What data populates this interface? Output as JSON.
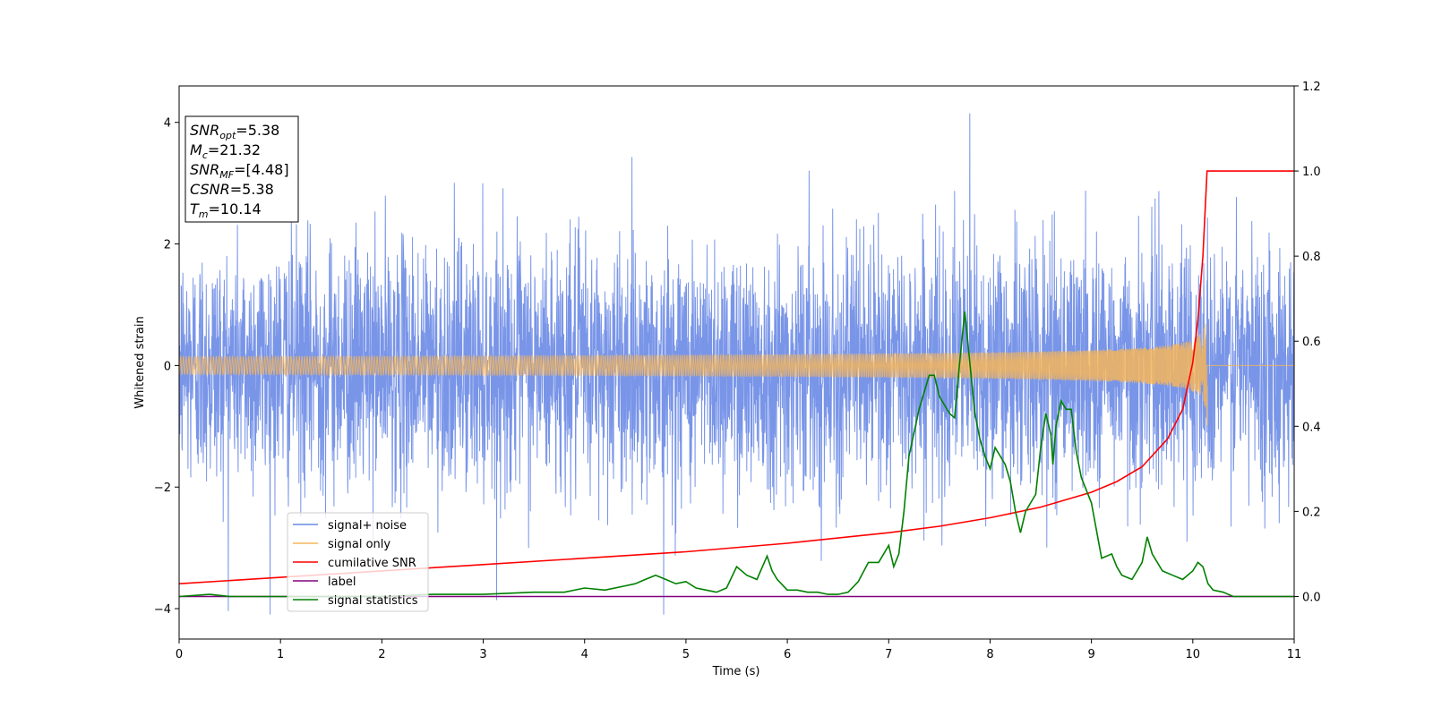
{
  "chart_data": {
    "type": "line",
    "xlabel": "Time (s)",
    "ylabel": "Whitened strain",
    "xlim": [
      0,
      11
    ],
    "ylim_left": [
      -4.5,
      4.6
    ],
    "ylim_right": [
      -0.1,
      1.2
    ],
    "x_ticks": [
      0,
      1,
      2,
      3,
      4,
      5,
      6,
      7,
      8,
      9,
      10,
      11
    ],
    "y_ticks_left": [
      -4,
      -2,
      0,
      2,
      4
    ],
    "y_ticks_right": [
      0.0,
      0.2,
      0.4,
      0.6,
      0.8,
      1.0,
      1.2
    ],
    "grid": false,
    "legend_position": "lower-left",
    "info_box": [
      {
        "base": "SNR",
        "sub": "opt",
        "value": "=5.38"
      },
      {
        "base": "M",
        "sub": "c",
        "value": "=21.32"
      },
      {
        "base": "SNR",
        "sub": "MF",
        "value": "=[4.48]"
      },
      {
        "base": "CSNR",
        "sub": "",
        "value": "=5.38"
      },
      {
        "base": "T",
        "sub": "m",
        "value": "=10.14"
      }
    ],
    "series": [
      {
        "name": "signal+ noise",
        "axis": "left",
        "color": "#6a8ae6",
        "kind": "noise",
        "amplitude_std": 1.0,
        "peak_max": 4.15,
        "peak_min": -4.1
      },
      {
        "name": "signal only",
        "axis": "left",
        "color": "#f5b55a",
        "kind": "chirp",
        "merger_time": 10.14,
        "peak_amplitude": 1.05
      },
      {
        "name": "cumilative SNR",
        "axis": "right",
        "color": "#ff0000",
        "x": [
          0,
          1,
          2,
          3,
          4,
          5,
          6,
          7,
          7.5,
          8,
          8.5,
          9,
          9.25,
          9.5,
          9.75,
          9.9,
          10.0,
          10.05,
          10.1,
          10.14,
          11
        ],
        "y": [
          0.03,
          0.045,
          0.06,
          0.075,
          0.09,
          0.105,
          0.125,
          0.15,
          0.165,
          0.185,
          0.21,
          0.245,
          0.27,
          0.305,
          0.37,
          0.44,
          0.55,
          0.65,
          0.8,
          1.0,
          1.0
        ]
      },
      {
        "name": "label",
        "axis": "right",
        "color": "#800080",
        "x": [
          0,
          11
        ],
        "y": [
          0.0,
          0.0
        ]
      },
      {
        "name": "signal statistics",
        "axis": "right",
        "color": "#008000",
        "x": [
          0,
          0.3,
          0.5,
          1.0,
          1.5,
          2.0,
          2.5,
          3.0,
          3.5,
          3.8,
          4.0,
          4.2,
          4.4,
          4.5,
          4.6,
          4.7,
          4.8,
          4.9,
          5.0,
          5.1,
          5.2,
          5.3,
          5.4,
          5.5,
          5.6,
          5.7,
          5.8,
          5.85,
          5.9,
          6.0,
          6.1,
          6.2,
          6.3,
          6.4,
          6.5,
          6.6,
          6.7,
          6.8,
          6.9,
          7.0,
          7.05,
          7.1,
          7.15,
          7.2,
          7.3,
          7.4,
          7.45,
          7.5,
          7.6,
          7.65,
          7.7,
          7.75,
          7.8,
          7.85,
          7.9,
          7.95,
          8.0,
          8.05,
          8.1,
          8.15,
          8.2,
          8.25,
          8.3,
          8.35,
          8.4,
          8.45,
          8.5,
          8.55,
          8.6,
          8.62,
          8.65,
          8.7,
          8.75,
          8.8,
          8.85,
          8.9,
          9.0,
          9.1,
          9.2,
          9.25,
          9.3,
          9.4,
          9.5,
          9.55,
          9.6,
          9.7,
          9.8,
          9.9,
          10.0,
          10.05,
          10.1,
          10.15,
          10.2,
          10.3,
          10.4,
          10.5,
          10.6,
          10.7,
          10.8,
          10.9,
          11.0
        ],
        "y": [
          0.0,
          0.005,
          0.0,
          0.0,
          0.0,
          0.0,
          0.005,
          0.005,
          0.01,
          0.01,
          0.02,
          0.015,
          0.025,
          0.03,
          0.04,
          0.05,
          0.04,
          0.03,
          0.035,
          0.02,
          0.015,
          0.01,
          0.02,
          0.07,
          0.05,
          0.04,
          0.095,
          0.06,
          0.04,
          0.015,
          0.015,
          0.01,
          0.01,
          0.005,
          0.005,
          0.01,
          0.035,
          0.08,
          0.08,
          0.12,
          0.07,
          0.1,
          0.2,
          0.33,
          0.44,
          0.52,
          0.52,
          0.47,
          0.43,
          0.42,
          0.55,
          0.67,
          0.55,
          0.43,
          0.37,
          0.33,
          0.3,
          0.35,
          0.33,
          0.31,
          0.27,
          0.2,
          0.15,
          0.2,
          0.22,
          0.24,
          0.35,
          0.43,
          0.38,
          0.31,
          0.4,
          0.46,
          0.44,
          0.44,
          0.34,
          0.28,
          0.22,
          0.09,
          0.1,
          0.07,
          0.05,
          0.04,
          0.08,
          0.14,
          0.1,
          0.06,
          0.05,
          0.04,
          0.06,
          0.08,
          0.07,
          0.03,
          0.015,
          0.01,
          0.0,
          0.0,
          0.0,
          0.0,
          0.0,
          0.0,
          0.0
        ]
      }
    ]
  }
}
